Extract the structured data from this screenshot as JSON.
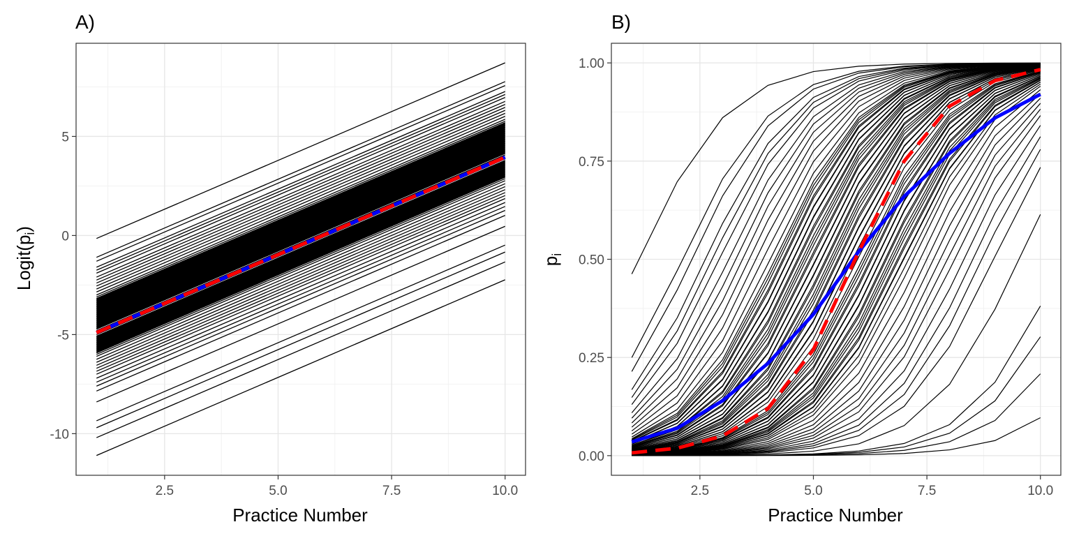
{
  "chart_data": [
    {
      "panel": "A)",
      "type": "line",
      "xlabel": "Practice Number",
      "ylabel": "Logit(p",
      "ylabel_sub": "i",
      "ylabel_close": ")",
      "xlim": [
        0.55,
        10.45
      ],
      "ylim": [
        -12.1,
        9.7
      ],
      "x_ticks": [
        2.5,
        5.0,
        7.5,
        10.0
      ],
      "x_tick_labels": [
        "2.5",
        "5.0",
        "7.5",
        "10.0"
      ],
      "y_ticks": [
        -10,
        -5,
        0,
        5
      ],
      "y_tick_labels": [
        "-10",
        "-5",
        "0",
        "5"
      ],
      "grid": true,
      "x": [
        1,
        10
      ],
      "individual_slope": 0.985,
      "individual_intercepts_at_x1": [
        -0.15,
        -1.1,
        -1.3,
        -1.6,
        -1.75,
        -1.9,
        -2.1,
        -2.25,
        -2.4,
        -2.55,
        -2.7,
        -2.85,
        -3.0,
        -3.1,
        -3.2,
        -3.3,
        -3.4,
        -3.5,
        -3.6,
        -3.7,
        -3.8,
        -3.9,
        -4.0,
        -4.1,
        -4.2,
        -4.3,
        -4.4,
        -4.5,
        -4.6,
        -4.7,
        -4.8,
        -4.9,
        -5.0,
        -5.1,
        -5.2,
        -5.3,
        -5.4,
        -5.5,
        -5.6,
        -5.7,
        -5.8,
        -5.9,
        -6.0,
        -6.1,
        -6.25,
        -6.4,
        -6.55,
        -6.7,
        -6.85,
        -7.0,
        -7.2,
        -7.4,
        -7.6,
        -7.85,
        -8.4,
        -9.35,
        -9.7,
        -10.2,
        -11.1
      ],
      "series": [
        {
          "color": "#0000ff",
          "style": "solid",
          "x": [
            1,
            10
          ],
          "y": [
            -4.9,
            3.95
          ]
        },
        {
          "color": "#ff0000",
          "style": "dashed",
          "x": [
            1,
            10
          ],
          "y": [
            -4.9,
            3.95
          ]
        }
      ]
    },
    {
      "panel": "B)",
      "type": "line",
      "xlabel": "Practice Number",
      "ylabel": "p",
      "ylabel_sub": "i",
      "xlim": [
        0.55,
        10.45
      ],
      "ylim": [
        -0.05,
        1.05
      ],
      "x_ticks": [
        2.5,
        5.0,
        7.5,
        10.0
      ],
      "x_tick_labels": [
        "2.5",
        "5.0",
        "7.5",
        "10.0"
      ],
      "y_ticks": [
        0,
        0.25,
        0.5,
        0.75,
        1.0
      ],
      "y_tick_labels": [
        "0.00",
        "0.25",
        "0.50",
        "0.75",
        "1.00"
      ],
      "grid": true,
      "x": [
        1,
        2,
        3,
        4,
        5,
        6,
        7,
        8,
        9,
        10
      ],
      "individual_curves": "inverse-logit of the panel A lines",
      "series": [
        {
          "color": "#0000ff",
          "style": "solid",
          "x": [
            1,
            2,
            3,
            4,
            5,
            6,
            7,
            8,
            9,
            10
          ],
          "y": [
            0.035,
            0.07,
            0.14,
            0.235,
            0.36,
            0.52,
            0.66,
            0.77,
            0.86,
            0.92
          ]
        },
        {
          "color": "#ff0000",
          "style": "dashed",
          "x": [
            1,
            2,
            3,
            4,
            5,
            6,
            7,
            8,
            9,
            10
          ],
          "y": [
            0.007,
            0.019,
            0.05,
            0.12,
            0.27,
            0.52,
            0.75,
            0.89,
            0.955,
            0.983
          ]
        }
      ]
    }
  ]
}
